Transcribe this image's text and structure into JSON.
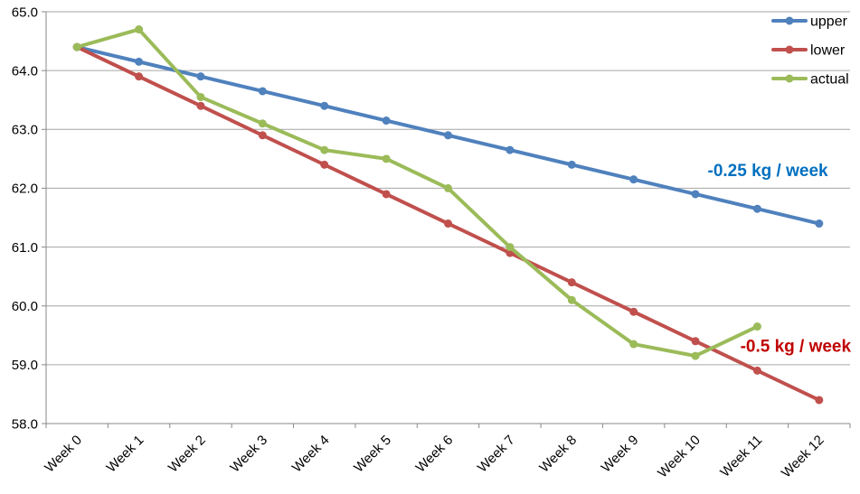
{
  "chart_data": {
    "type": "line",
    "title": "",
    "xlabel": "",
    "ylabel": "",
    "categories": [
      "Week 0",
      "Week 1",
      "Week 2",
      "Week 3",
      "Week 4",
      "Week 5",
      "Week 6",
      "Week 7",
      "Week 8",
      "Week 9",
      "Week 10",
      "Week 11",
      "Week 12"
    ],
    "series": [
      {
        "name": "upper",
        "color": "#4F81BD",
        "values": [
          64.4,
          64.15,
          63.9,
          63.65,
          63.4,
          63.15,
          62.9,
          62.65,
          62.4,
          62.15,
          61.9,
          61.65,
          61.4
        ]
      },
      {
        "name": "lower",
        "color": "#C0504D",
        "values": [
          64.4,
          63.9,
          63.4,
          62.9,
          62.4,
          61.9,
          61.4,
          60.9,
          60.4,
          59.9,
          59.4,
          58.9,
          58.4
        ]
      },
      {
        "name": "actual",
        "color": "#9BBB59",
        "values": [
          64.4,
          64.7,
          63.55,
          63.1,
          62.65,
          62.5,
          62.0,
          61.0,
          60.1,
          59.35,
          59.15,
          59.65,
          null
        ]
      }
    ],
    "ylim": [
      58.0,
      65.0
    ],
    "ytick_step": 1.0,
    "ytick_decimals": 1,
    "grid": true,
    "legend_position": "top-right",
    "legend": [
      "upper",
      "lower",
      "actual"
    ],
    "annotations": [
      {
        "text": "-0.25 kg / week",
        "color": "#0070C0",
        "x_week": 11.17,
        "y_value": 62.31
      },
      {
        "text": "-0.5 kg / week",
        "color": "#C00000",
        "x_week": 11.62,
        "y_value": 59.32
      }
    ],
    "axis_color": "#898989",
    "grid_color": "#A6A6A6",
    "tick_label_color": "#000000",
    "legend_text_color": "#000000"
  }
}
